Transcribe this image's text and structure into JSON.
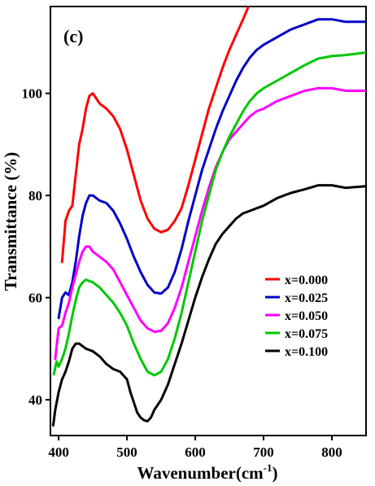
{
  "chart_data": {
    "type": "line",
    "panel_label": "(c)",
    "xlabel": "Wavenumber(cm",
    "xlabel_superscript": "-1",
    "xlabel_suffix": ")",
    "ylabel": "Transmittance (%)",
    "xlim": [
      388,
      850
    ],
    "ylim": [
      33,
      117
    ],
    "xticks": [
      400,
      500,
      600,
      700,
      800
    ],
    "yticks": [
      40,
      60,
      80,
      100
    ],
    "grid": false,
    "legend_position": "center-right",
    "series": [
      {
        "name": "x=0.000",
        "color": "#ff0000",
        "points": [
          [
            405,
            67
          ],
          [
            410,
            75
          ],
          [
            415,
            77
          ],
          [
            420,
            78
          ],
          [
            425,
            84
          ],
          [
            430,
            90
          ],
          [
            435,
            93
          ],
          [
            440,
            97
          ],
          [
            445,
            99.5
          ],
          [
            450,
            100
          ],
          [
            455,
            99
          ],
          [
            460,
            98
          ],
          [
            470,
            97
          ],
          [
            480,
            95.5
          ],
          [
            490,
            93
          ],
          [
            500,
            89
          ],
          [
            510,
            84
          ],
          [
            520,
            79
          ],
          [
            530,
            75.5
          ],
          [
            540,
            73.5
          ],
          [
            550,
            72.8
          ],
          [
            560,
            73.3
          ],
          [
            570,
            75
          ],
          [
            580,
            77.5
          ],
          [
            590,
            82
          ],
          [
            600,
            87
          ],
          [
            610,
            92
          ],
          [
            620,
            97
          ],
          [
            630,
            101
          ],
          [
            640,
            105
          ],
          [
            650,
            108.5
          ],
          [
            660,
            111.5
          ],
          [
            670,
            114.5
          ],
          [
            678,
            117
          ]
        ]
      },
      {
        "name": "x=0.025",
        "color": "#0000c8",
        "points": [
          [
            400,
            56
          ],
          [
            405,
            60
          ],
          [
            410,
            61
          ],
          [
            415,
            60.5
          ],
          [
            420,
            63
          ],
          [
            425,
            67
          ],
          [
            430,
            72
          ],
          [
            435,
            76
          ],
          [
            440,
            78.5
          ],
          [
            445,
            80
          ],
          [
            450,
            80
          ],
          [
            460,
            79
          ],
          [
            470,
            78.5
          ],
          [
            480,
            77
          ],
          [
            490,
            74.5
          ],
          [
            500,
            71.5
          ],
          [
            510,
            68
          ],
          [
            520,
            65
          ],
          [
            530,
            62.5
          ],
          [
            540,
            61
          ],
          [
            550,
            60.8
          ],
          [
            560,
            62
          ],
          [
            570,
            65
          ],
          [
            580,
            69.5
          ],
          [
            590,
            75
          ],
          [
            600,
            80
          ],
          [
            610,
            85
          ],
          [
            620,
            89
          ],
          [
            630,
            93
          ],
          [
            640,
            96.5
          ],
          [
            650,
            99.5
          ],
          [
            660,
            102.5
          ],
          [
            670,
            105
          ],
          [
            680,
            107
          ],
          [
            690,
            108.5
          ],
          [
            700,
            109.5
          ],
          [
            720,
            111
          ],
          [
            740,
            112.5
          ],
          [
            760,
            113.5
          ],
          [
            780,
            114.5
          ],
          [
            800,
            114.5
          ],
          [
            820,
            114
          ],
          [
            850,
            114
          ]
        ]
      },
      {
        "name": "x=0.050",
        "color": "#ff00ff",
        "points": [
          [
            395,
            48
          ],
          [
            400,
            54
          ],
          [
            405,
            54.5
          ],
          [
            410,
            57
          ],
          [
            415,
            59
          ],
          [
            420,
            62
          ],
          [
            425,
            64.5
          ],
          [
            430,
            67
          ],
          [
            435,
            69
          ],
          [
            440,
            70
          ],
          [
            445,
            70
          ],
          [
            450,
            69
          ],
          [
            460,
            68
          ],
          [
            470,
            67
          ],
          [
            480,
            65.5
          ],
          [
            490,
            63
          ],
          [
            500,
            60.5
          ],
          [
            510,
            58
          ],
          [
            520,
            55.5
          ],
          [
            530,
            54
          ],
          [
            540,
            53.3
          ],
          [
            550,
            53.5
          ],
          [
            560,
            55
          ],
          [
            570,
            58
          ],
          [
            580,
            62
          ],
          [
            590,
            67
          ],
          [
            600,
            72
          ],
          [
            610,
            77
          ],
          [
            620,
            81.5
          ],
          [
            630,
            85.5
          ],
          [
            640,
            88.5
          ],
          [
            650,
            91
          ],
          [
            660,
            92.5
          ],
          [
            670,
            94
          ],
          [
            680,
            95.5
          ],
          [
            690,
            96.5
          ],
          [
            700,
            97
          ],
          [
            720,
            98.5
          ],
          [
            740,
            99.5
          ],
          [
            760,
            100.5
          ],
          [
            780,
            101
          ],
          [
            800,
            101
          ],
          [
            820,
            100.5
          ],
          [
            850,
            100.5
          ]
        ]
      },
      {
        "name": "x=0.075",
        "color": "#00c800",
        "points": [
          [
            393,
            45
          ],
          [
            397,
            47.5
          ],
          [
            400,
            46.5
          ],
          [
            405,
            48
          ],
          [
            410,
            50
          ],
          [
            415,
            53
          ],
          [
            420,
            56.5
          ],
          [
            425,
            59.5
          ],
          [
            430,
            62
          ],
          [
            435,
            63
          ],
          [
            440,
            63.5
          ],
          [
            450,
            63
          ],
          [
            460,
            62
          ],
          [
            470,
            60.5
          ],
          [
            480,
            59
          ],
          [
            490,
            57
          ],
          [
            500,
            54.5
          ],
          [
            510,
            51
          ],
          [
            520,
            48
          ],
          [
            530,
            45.5
          ],
          [
            540,
            44.8
          ],
          [
            550,
            45.5
          ],
          [
            560,
            48
          ],
          [
            570,
            52
          ],
          [
            580,
            57
          ],
          [
            590,
            63
          ],
          [
            600,
            69
          ],
          [
            610,
            75
          ],
          [
            620,
            80
          ],
          [
            630,
            85
          ],
          [
            640,
            88.5
          ],
          [
            650,
            91.5
          ],
          [
            660,
            94
          ],
          [
            670,
            96.5
          ],
          [
            680,
            98.5
          ],
          [
            690,
            100
          ],
          [
            700,
            101
          ],
          [
            720,
            102.5
          ],
          [
            740,
            104
          ],
          [
            760,
            105.5
          ],
          [
            780,
            106.8
          ],
          [
            800,
            107.3
          ],
          [
            820,
            107.5
          ],
          [
            850,
            108
          ]
        ]
      },
      {
        "name": "x=0.100",
        "color": "#000000",
        "points": [
          [
            392,
            35
          ],
          [
            395,
            38
          ],
          [
            400,
            41.5
          ],
          [
            405,
            44
          ],
          [
            410,
            45.5
          ],
          [
            415,
            47.5
          ],
          [
            420,
            50
          ],
          [
            425,
            51
          ],
          [
            430,
            51
          ],
          [
            440,
            50
          ],
          [
            450,
            49.5
          ],
          [
            460,
            48.5
          ],
          [
            470,
            47
          ],
          [
            480,
            46
          ],
          [
            490,
            45.5
          ],
          [
            500,
            44
          ],
          [
            505,
            41.5
          ],
          [
            510,
            39.5
          ],
          [
            515,
            37.5
          ],
          [
            520,
            36.5
          ],
          [
            525,
            36
          ],
          [
            530,
            35.8
          ],
          [
            535,
            36.5
          ],
          [
            540,
            38
          ],
          [
            550,
            40
          ],
          [
            560,
            43
          ],
          [
            570,
            47
          ],
          [
            580,
            51
          ],
          [
            590,
            55.5
          ],
          [
            600,
            60
          ],
          [
            610,
            64
          ],
          [
            620,
            67.5
          ],
          [
            630,
            70.5
          ],
          [
            640,
            72.5
          ],
          [
            650,
            74
          ],
          [
            660,
            75.5
          ],
          [
            670,
            76.5
          ],
          [
            680,
            77
          ],
          [
            690,
            77.5
          ],
          [
            700,
            78
          ],
          [
            720,
            79.5
          ],
          [
            740,
            80.5
          ],
          [
            760,
            81.2
          ],
          [
            780,
            82
          ],
          [
            800,
            82
          ],
          [
            820,
            81.5
          ],
          [
            850,
            81.8
          ]
        ]
      }
    ]
  }
}
